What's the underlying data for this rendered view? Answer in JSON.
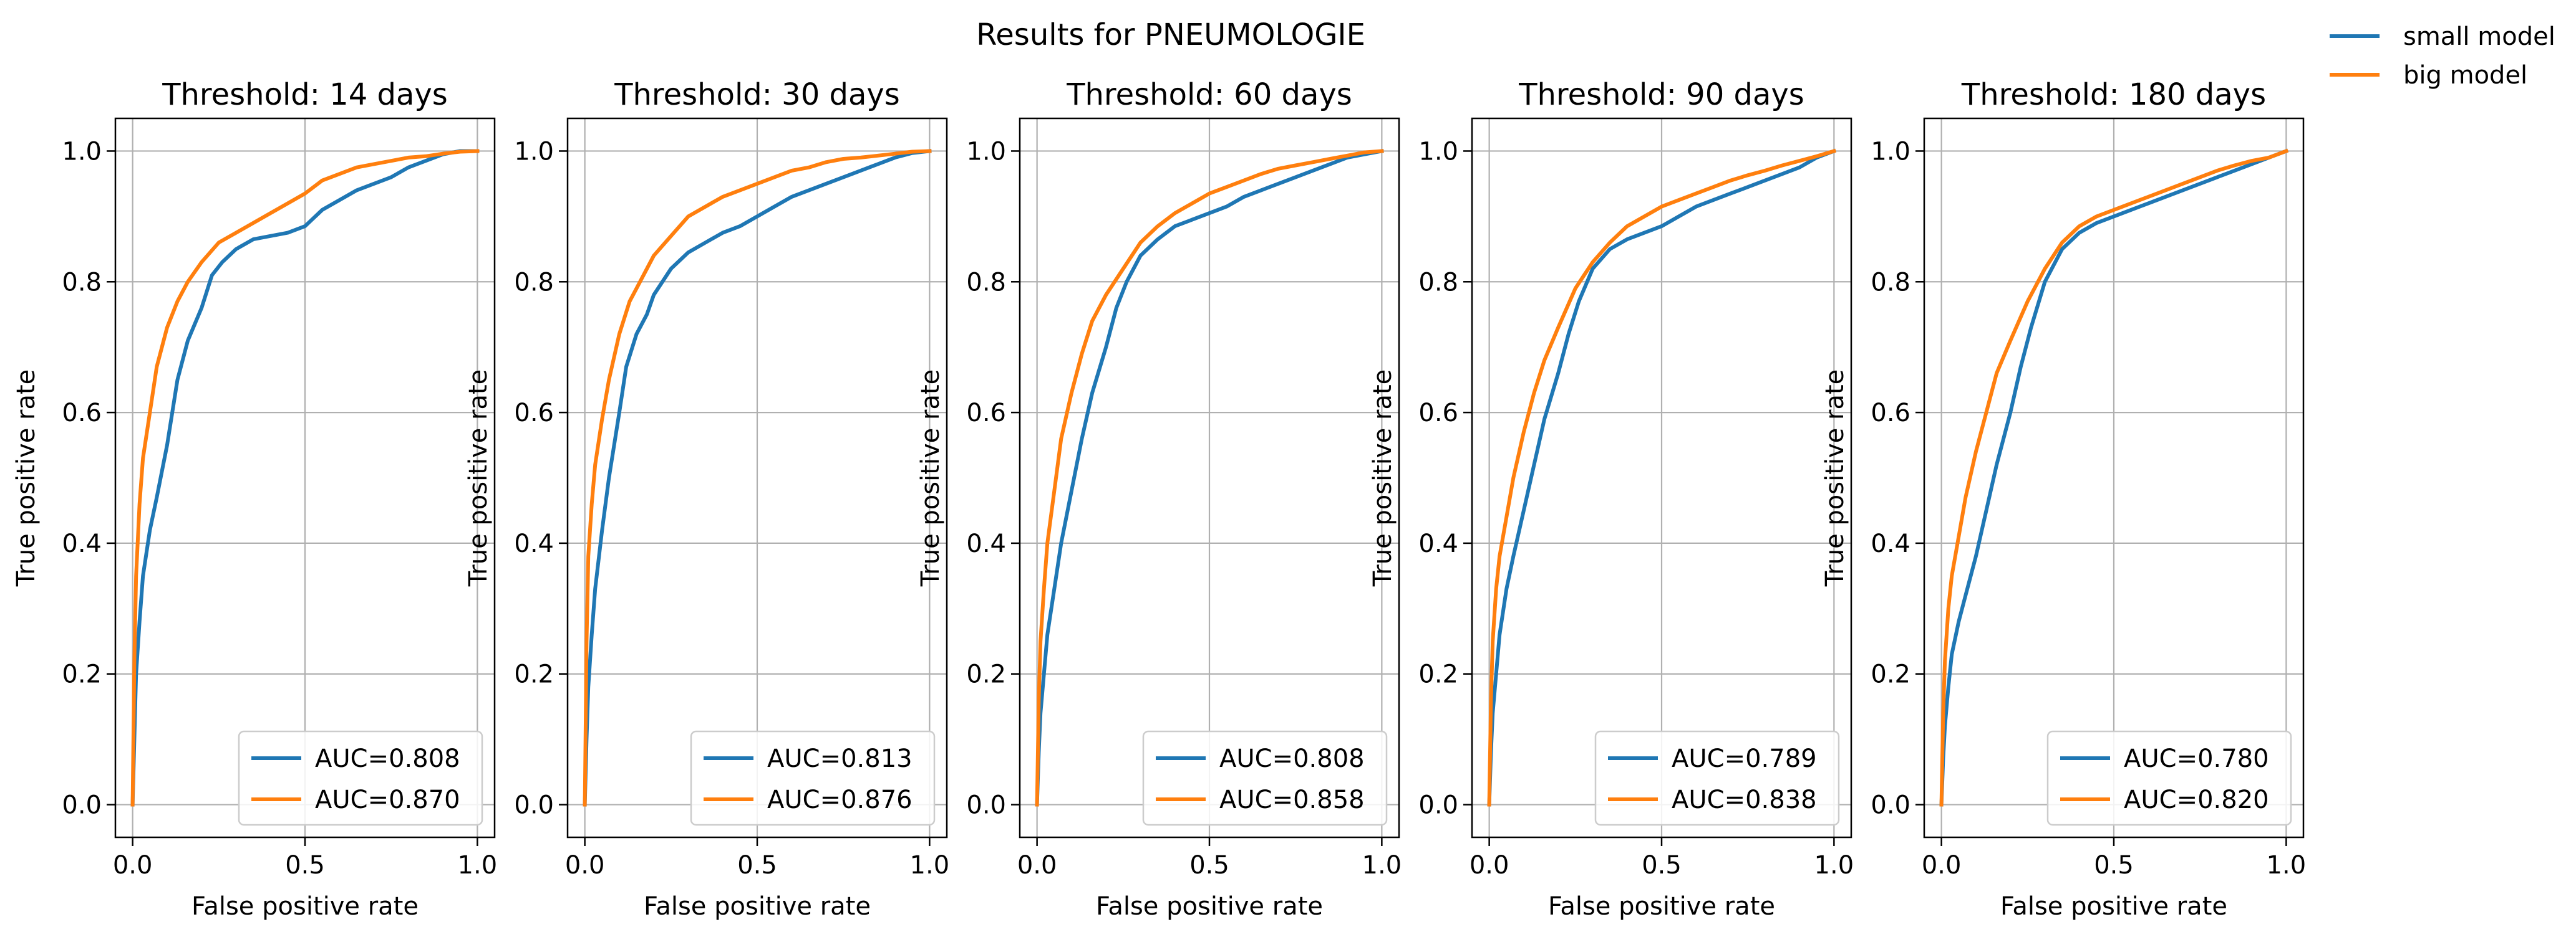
{
  "figure": {
    "suptitle": "Results for PNEUMOLOGIE",
    "legend": [
      {
        "name": "small model",
        "color": "#1f77b4"
      },
      {
        "name": "big model",
        "color": "#ff7f0e"
      }
    ]
  },
  "chart_data": [
    {
      "type": "line",
      "title": "Threshold: 14 days",
      "xlabel": "False positive rate",
      "ylabel": "True positive rate",
      "xlim": [
        -0.05,
        1.05
      ],
      "ylim": [
        -0.05,
        1.05
      ],
      "xticks": [
        "0.0",
        "0.5",
        "1.0"
      ],
      "yticks": [
        "0.0",
        "0.2",
        "0.4",
        "0.6",
        "0.8",
        "1.0"
      ],
      "grid": true,
      "legend_position": "lower-right",
      "series": [
        {
          "name": "AUC=0.808",
          "color": "#1f77b4",
          "x": [
            0,
            0.005,
            0.01,
            0.02,
            0.03,
            0.05,
            0.07,
            0.1,
            0.13,
            0.16,
            0.2,
            0.23,
            0.26,
            0.3,
            0.35,
            0.4,
            0.45,
            0.5,
            0.55,
            0.6,
            0.65,
            0.7,
            0.75,
            0.8,
            0.85,
            0.9,
            0.95,
            1.0
          ],
          "y": [
            0,
            0.1,
            0.2,
            0.28,
            0.35,
            0.42,
            0.47,
            0.55,
            0.65,
            0.71,
            0.76,
            0.81,
            0.83,
            0.85,
            0.865,
            0.87,
            0.875,
            0.885,
            0.91,
            0.925,
            0.94,
            0.95,
            0.96,
            0.975,
            0.985,
            0.995,
            1.0,
            1.0
          ]
        },
        {
          "name": "AUC=0.870",
          "color": "#ff7f0e",
          "x": [
            0,
            0.005,
            0.01,
            0.02,
            0.03,
            0.05,
            0.07,
            0.1,
            0.13,
            0.16,
            0.2,
            0.25,
            0.3,
            0.35,
            0.4,
            0.45,
            0.5,
            0.55,
            0.6,
            0.65,
            0.7,
            0.75,
            0.8,
            0.85,
            0.9,
            0.95,
            1.0
          ],
          "y": [
            0,
            0.22,
            0.35,
            0.46,
            0.53,
            0.6,
            0.67,
            0.73,
            0.77,
            0.8,
            0.83,
            0.86,
            0.875,
            0.89,
            0.905,
            0.92,
            0.935,
            0.955,
            0.965,
            0.975,
            0.98,
            0.985,
            0.99,
            0.992,
            0.996,
            0.999,
            1.0
          ]
        }
      ]
    },
    {
      "type": "line",
      "title": "Threshold: 30 days",
      "xlabel": "False positive rate",
      "ylabel": "True positive rate",
      "xlim": [
        -0.05,
        1.05
      ],
      "ylim": [
        -0.05,
        1.05
      ],
      "xticks": [
        "0.0",
        "0.5",
        "1.0"
      ],
      "yticks": [
        "0.0",
        "0.2",
        "0.4",
        "0.6",
        "0.8",
        "1.0"
      ],
      "grid": true,
      "legend_position": "lower-right",
      "series": [
        {
          "name": "AUC=0.813",
          "color": "#1f77b4",
          "x": [
            0,
            0.005,
            0.01,
            0.02,
            0.03,
            0.05,
            0.07,
            0.1,
            0.12,
            0.15,
            0.18,
            0.2,
            0.25,
            0.3,
            0.35,
            0.4,
            0.45,
            0.5,
            0.55,
            0.6,
            0.65,
            0.7,
            0.75,
            0.8,
            0.85,
            0.9,
            0.95,
            1.0
          ],
          "y": [
            0,
            0.1,
            0.18,
            0.26,
            0.33,
            0.42,
            0.5,
            0.6,
            0.67,
            0.72,
            0.75,
            0.78,
            0.82,
            0.845,
            0.86,
            0.875,
            0.885,
            0.9,
            0.915,
            0.93,
            0.94,
            0.95,
            0.96,
            0.97,
            0.98,
            0.99,
            0.997,
            1.0
          ]
        },
        {
          "name": "AUC=0.876",
          "color": "#ff7f0e",
          "x": [
            0,
            0.005,
            0.01,
            0.02,
            0.03,
            0.05,
            0.07,
            0.1,
            0.13,
            0.16,
            0.2,
            0.25,
            0.3,
            0.35,
            0.4,
            0.45,
            0.5,
            0.55,
            0.6,
            0.65,
            0.7,
            0.75,
            0.8,
            0.85,
            0.9,
            0.95,
            1.0
          ],
          "y": [
            0,
            0.25,
            0.38,
            0.46,
            0.52,
            0.59,
            0.65,
            0.72,
            0.77,
            0.8,
            0.84,
            0.87,
            0.9,
            0.915,
            0.93,
            0.94,
            0.95,
            0.96,
            0.97,
            0.975,
            0.983,
            0.988,
            0.99,
            0.993,
            0.996,
            0.999,
            1.0
          ]
        }
      ]
    },
    {
      "type": "line",
      "title": "Threshold: 60 days",
      "xlabel": "False positive rate",
      "ylabel": "True positive rate",
      "xlim": [
        -0.05,
        1.05
      ],
      "ylim": [
        -0.05,
        1.05
      ],
      "xticks": [
        "0.0",
        "0.5",
        "1.0"
      ],
      "yticks": [
        "0.0",
        "0.2",
        "0.4",
        "0.6",
        "0.8",
        "1.0"
      ],
      "grid": true,
      "legend_position": "lower-right",
      "series": [
        {
          "name": "AUC=0.808",
          "color": "#1f77b4",
          "x": [
            0,
            0.005,
            0.01,
            0.02,
            0.03,
            0.05,
            0.07,
            0.1,
            0.13,
            0.16,
            0.2,
            0.23,
            0.26,
            0.3,
            0.35,
            0.4,
            0.45,
            0.5,
            0.55,
            0.6,
            0.65,
            0.7,
            0.75,
            0.8,
            0.85,
            0.9,
            0.95,
            1.0
          ],
          "y": [
            0,
            0.08,
            0.14,
            0.2,
            0.26,
            0.33,
            0.4,
            0.48,
            0.56,
            0.63,
            0.7,
            0.76,
            0.8,
            0.84,
            0.865,
            0.885,
            0.895,
            0.905,
            0.915,
            0.93,
            0.94,
            0.95,
            0.96,
            0.97,
            0.98,
            0.99,
            0.995,
            1.0
          ]
        },
        {
          "name": "AUC=0.858",
          "color": "#ff7f0e",
          "x": [
            0,
            0.005,
            0.01,
            0.02,
            0.03,
            0.05,
            0.07,
            0.1,
            0.13,
            0.16,
            0.2,
            0.25,
            0.3,
            0.35,
            0.4,
            0.45,
            0.5,
            0.55,
            0.6,
            0.65,
            0.7,
            0.75,
            0.8,
            0.85,
            0.9,
            0.95,
            1.0
          ],
          "y": [
            0,
            0.16,
            0.25,
            0.33,
            0.4,
            0.48,
            0.56,
            0.63,
            0.69,
            0.74,
            0.78,
            0.82,
            0.86,
            0.885,
            0.905,
            0.92,
            0.935,
            0.945,
            0.955,
            0.965,
            0.973,
            0.978,
            0.983,
            0.988,
            0.993,
            0.998,
            1.0
          ]
        }
      ]
    },
    {
      "type": "line",
      "title": "Threshold: 90 days",
      "xlabel": "False positive rate",
      "ylabel": "True positive rate",
      "xlim": [
        -0.05,
        1.05
      ],
      "ylim": [
        -0.05,
        1.05
      ],
      "xticks": [
        "0.0",
        "0.5",
        "1.0"
      ],
      "yticks": [
        "0.0",
        "0.2",
        "0.4",
        "0.6",
        "0.8",
        "1.0"
      ],
      "grid": true,
      "legend_position": "lower-right",
      "series": [
        {
          "name": "AUC=0.789",
          "color": "#1f77b4",
          "x": [
            0,
            0.005,
            0.01,
            0.02,
            0.03,
            0.05,
            0.07,
            0.1,
            0.13,
            0.16,
            0.2,
            0.23,
            0.26,
            0.3,
            0.35,
            0.4,
            0.45,
            0.5,
            0.55,
            0.6,
            0.65,
            0.7,
            0.75,
            0.8,
            0.85,
            0.9,
            0.95,
            1.0
          ],
          "y": [
            0,
            0.08,
            0.14,
            0.2,
            0.26,
            0.33,
            0.38,
            0.45,
            0.52,
            0.59,
            0.66,
            0.72,
            0.77,
            0.82,
            0.85,
            0.865,
            0.875,
            0.885,
            0.9,
            0.915,
            0.925,
            0.935,
            0.945,
            0.955,
            0.965,
            0.975,
            0.99,
            1.0
          ]
        },
        {
          "name": "AUC=0.838",
          "color": "#ff7f0e",
          "x": [
            0,
            0.005,
            0.01,
            0.02,
            0.03,
            0.05,
            0.07,
            0.1,
            0.13,
            0.16,
            0.2,
            0.25,
            0.3,
            0.35,
            0.4,
            0.45,
            0.5,
            0.55,
            0.6,
            0.65,
            0.7,
            0.75,
            0.8,
            0.85,
            0.9,
            0.95,
            1.0
          ],
          "y": [
            0,
            0.16,
            0.25,
            0.33,
            0.38,
            0.44,
            0.5,
            0.57,
            0.63,
            0.68,
            0.73,
            0.79,
            0.83,
            0.86,
            0.885,
            0.9,
            0.915,
            0.925,
            0.935,
            0.945,
            0.955,
            0.963,
            0.97,
            0.978,
            0.985,
            0.992,
            1.0
          ]
        }
      ]
    },
    {
      "type": "line",
      "title": "Threshold: 180 days",
      "xlabel": "False positive rate",
      "ylabel": "True positive rate",
      "xlim": [
        -0.05,
        1.05
      ],
      "ylim": [
        -0.05,
        1.05
      ],
      "xticks": [
        "0.0",
        "0.5",
        "1.0"
      ],
      "yticks": [
        "0.0",
        "0.2",
        "0.4",
        "0.6",
        "0.8",
        "1.0"
      ],
      "grid": true,
      "legend_position": "lower-right",
      "series": [
        {
          "name": "AUC=0.780",
          "color": "#1f77b4",
          "x": [
            0,
            0.005,
            0.01,
            0.02,
            0.03,
            0.05,
            0.07,
            0.1,
            0.13,
            0.16,
            0.2,
            0.23,
            0.26,
            0.3,
            0.35,
            0.4,
            0.45,
            0.5,
            0.55,
            0.6,
            0.65,
            0.7,
            0.75,
            0.8,
            0.85,
            0.9,
            0.95,
            1.0
          ],
          "y": [
            0,
            0.07,
            0.12,
            0.18,
            0.23,
            0.28,
            0.32,
            0.38,
            0.45,
            0.52,
            0.6,
            0.67,
            0.73,
            0.8,
            0.85,
            0.875,
            0.89,
            0.9,
            0.91,
            0.92,
            0.93,
            0.94,
            0.95,
            0.96,
            0.97,
            0.98,
            0.99,
            1.0
          ]
        },
        {
          "name": "AUC=0.820",
          "color": "#ff7f0e",
          "x": [
            0,
            0.005,
            0.01,
            0.02,
            0.03,
            0.05,
            0.07,
            0.1,
            0.13,
            0.16,
            0.2,
            0.25,
            0.3,
            0.35,
            0.4,
            0.45,
            0.5,
            0.55,
            0.6,
            0.65,
            0.7,
            0.75,
            0.8,
            0.85,
            0.9,
            0.95,
            1.0
          ],
          "y": [
            0,
            0.14,
            0.22,
            0.3,
            0.35,
            0.41,
            0.47,
            0.54,
            0.6,
            0.66,
            0.71,
            0.77,
            0.82,
            0.86,
            0.885,
            0.9,
            0.91,
            0.92,
            0.93,
            0.94,
            0.95,
            0.96,
            0.97,
            0.978,
            0.985,
            0.99,
            1.0
          ]
        }
      ]
    }
  ]
}
